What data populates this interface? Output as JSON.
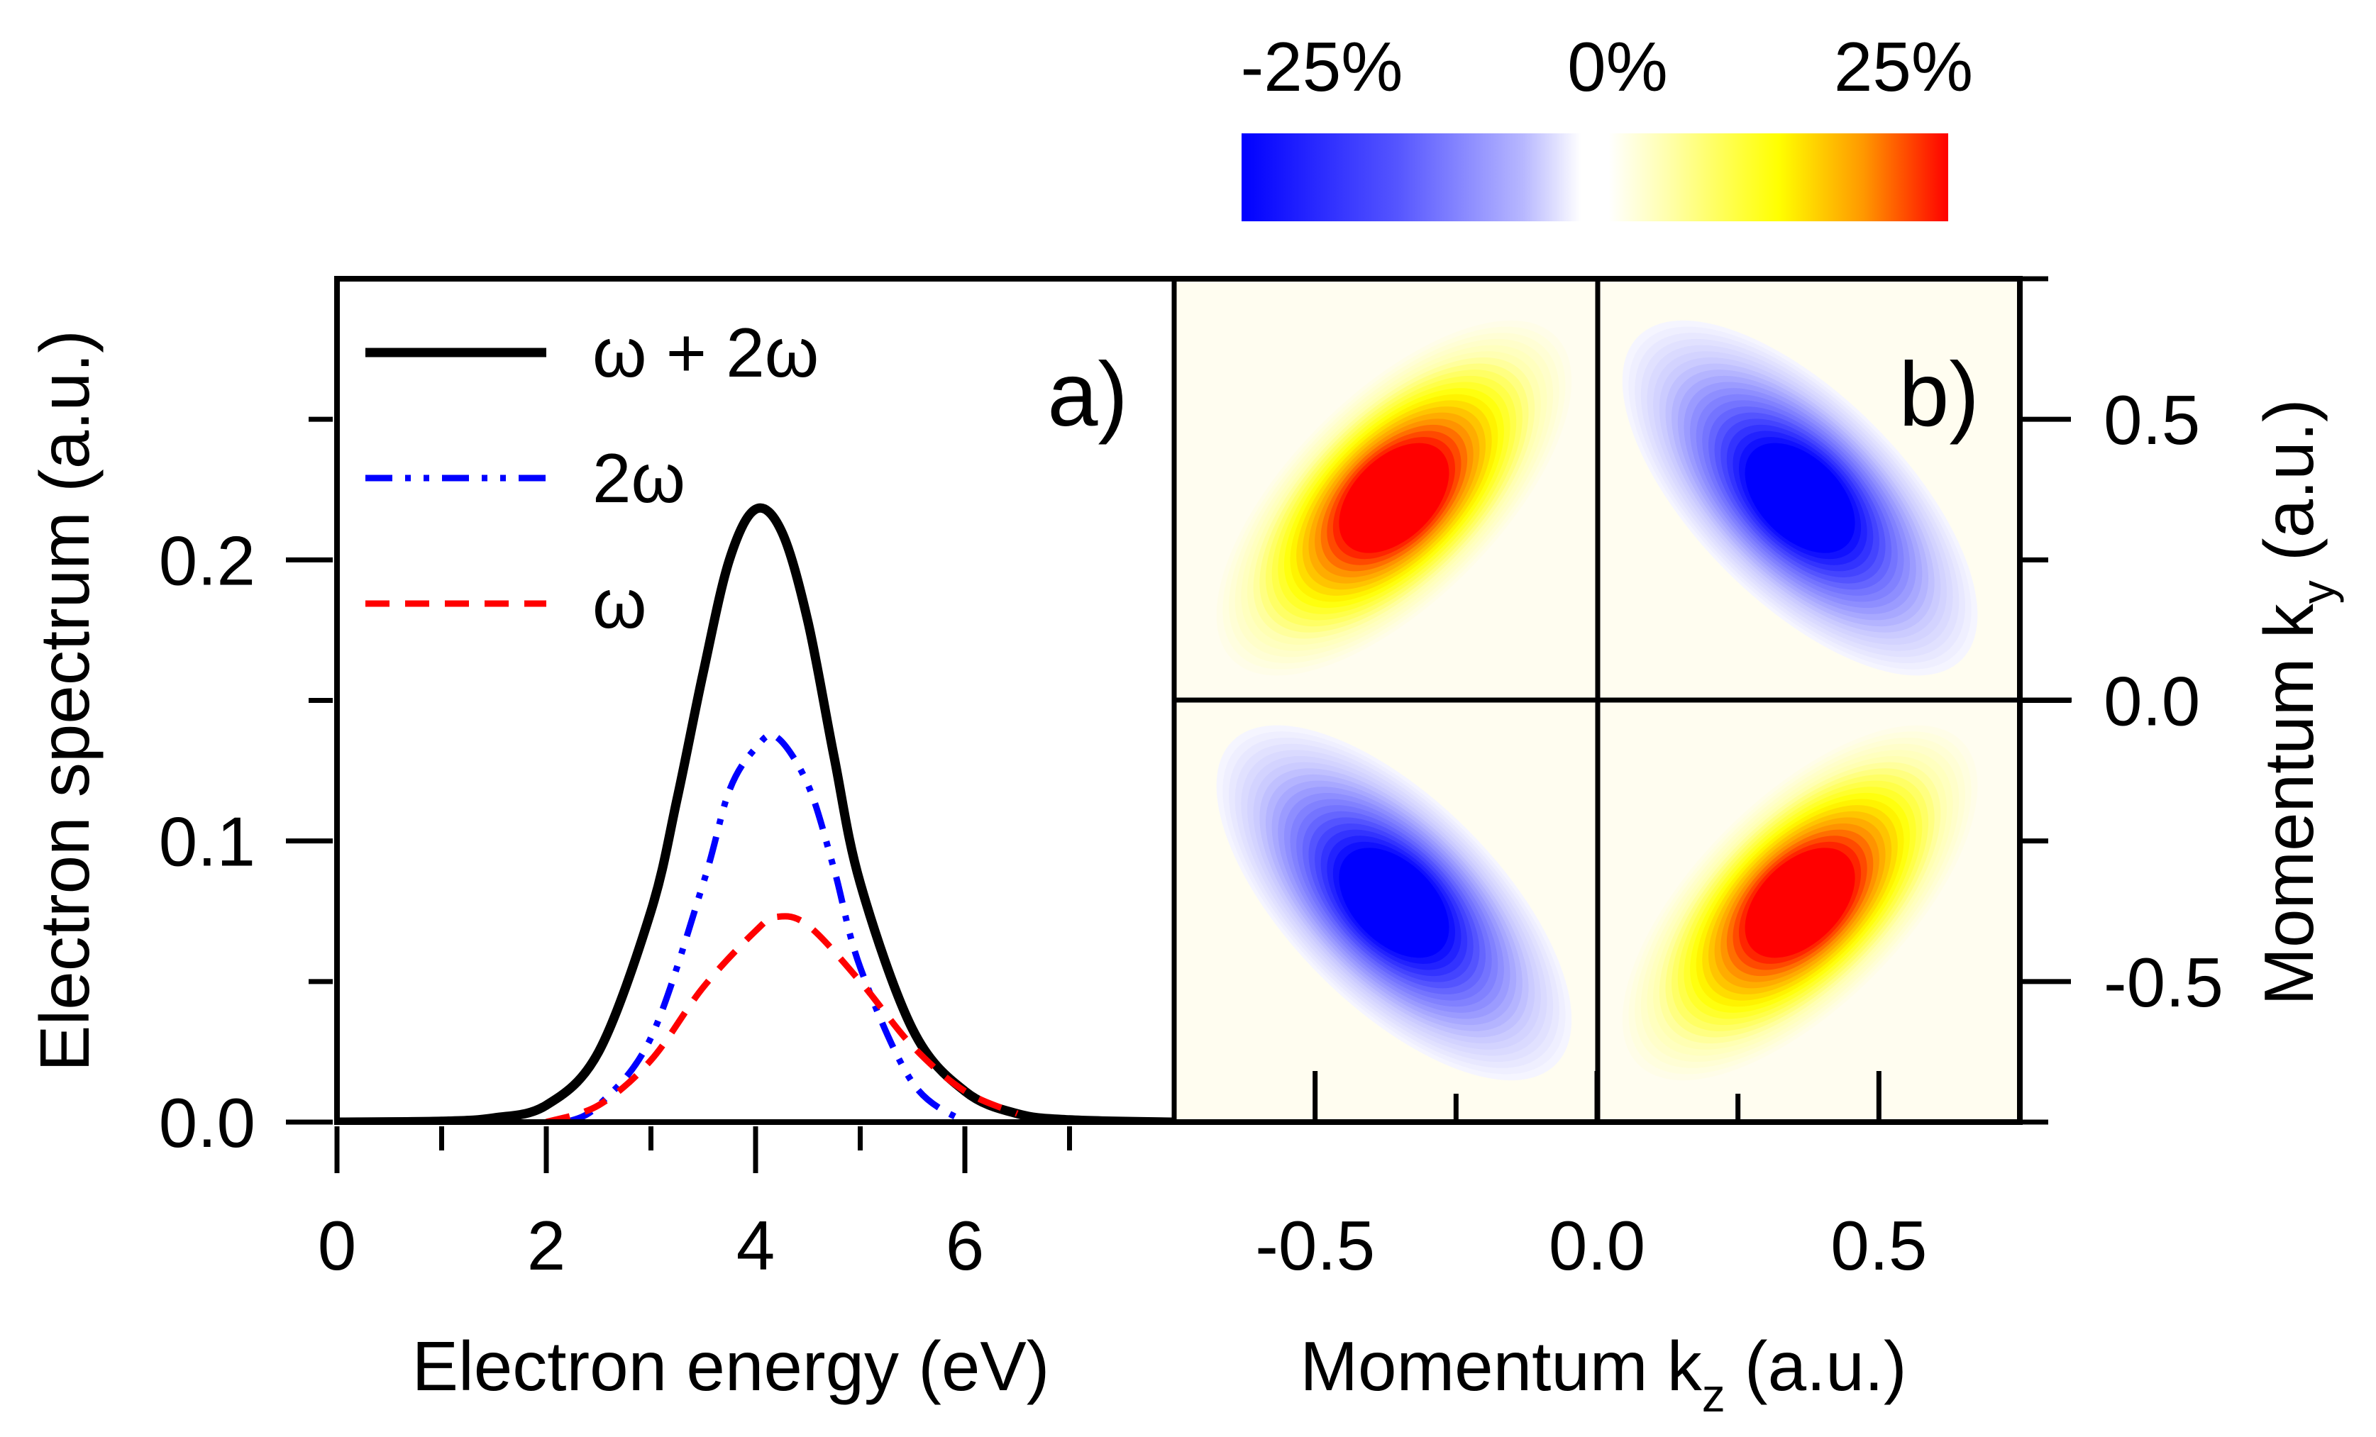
{
  "colorbar": {
    "tick_labels": [
      "-25%",
      "0%",
      "25%"
    ],
    "range": [
      -25,
      25
    ],
    "colors": [
      "#0000ff",
      "#ffffff",
      "#ffff00",
      "#ff0000"
    ]
  },
  "chart_data": [
    {
      "type": "line",
      "panel_label": "a)",
      "xlabel": "Electron energy (eV)",
      "ylabel": "Electron spectrum (a.u.)",
      "xlim": [
        0,
        8
      ],
      "ylim": [
        0,
        0.3
      ],
      "x_ticks": [
        0,
        2,
        4,
        6
      ],
      "x_tick_labels": [
        "0",
        "2",
        "4",
        "6"
      ],
      "y_ticks": [
        0.0,
        0.1,
        0.2
      ],
      "y_tick_labels": [
        "0.0",
        "0.1",
        "0.2"
      ],
      "grid": false,
      "legend_position": "top-left",
      "series": [
        {
          "name": "ω + 2ω",
          "color": "#000000",
          "dash": "solid",
          "x": [
            0,
            1,
            1.5,
            2,
            2.5,
            3,
            3.25,
            3.5,
            3.75,
            4,
            4.25,
            4.5,
            4.75,
            5,
            5.5,
            6,
            6.5,
            7,
            8
          ],
          "y": [
            0,
            0.0003,
            0.0015,
            0.006,
            0.025,
            0.075,
            0.115,
            0.16,
            0.2,
            0.218,
            0.21,
            0.178,
            0.13,
            0.085,
            0.033,
            0.011,
            0.003,
            0.0008,
            0
          ]
        },
        {
          "name": "2ω",
          "color": "#0000ff",
          "dash": "dash-dot-dot",
          "x": [
            2.2,
            2.5,
            3,
            3.5,
            3.75,
            4,
            4.2,
            4.5,
            4.75,
            5,
            5.5,
            6
          ],
          "y": [
            0,
            0.006,
            0.03,
            0.085,
            0.118,
            0.133,
            0.137,
            0.12,
            0.09,
            0.055,
            0.014,
            0
          ]
        },
        {
          "name": "ω",
          "color": "#ff0000",
          "dash": "dash",
          "x": [
            2,
            2.5,
            3,
            3.5,
            4,
            4.2,
            4.5,
            5,
            5.5,
            6,
            6.5
          ],
          "y": [
            0,
            0.006,
            0.022,
            0.048,
            0.068,
            0.073,
            0.07,
            0.05,
            0.027,
            0.011,
            0.003
          ]
        }
      ]
    },
    {
      "type": "heatmap",
      "panel_label": "b)",
      "xlabel": "Momentum k",
      "xlabel_sub": "z",
      "xlabel_suffix": " (a.u.)",
      "ylabel": "Momentum k",
      "ylabel_sub": "y",
      "ylabel_suffix": " (a.u.)",
      "xlim": [
        -0.75,
        0.75
      ],
      "ylim": [
        -0.75,
        0.75
      ],
      "x_ticks": [
        -0.5,
        0.0,
        0.5
      ],
      "x_tick_labels": [
        "-0.5",
        "0.0",
        "0.5"
      ],
      "y_ticks": [
        -0.5,
        0.0,
        0.5
      ],
      "y_tick_labels": [
        "-0.5",
        "0.0",
        "0.5"
      ],
      "y_axis_side": "right",
      "crosshair": [
        0,
        0
      ],
      "value_unit": "%",
      "lobes": [
        {
          "quadrant": "upper-left",
          "center": [
            -0.36,
            0.36
          ],
          "peak": 25,
          "axis_angle_deg": 45
        },
        {
          "quadrant": "upper-right",
          "center": [
            0.36,
            0.36
          ],
          "peak": -25,
          "axis_angle_deg": -45
        },
        {
          "quadrant": "lower-left",
          "center": [
            -0.36,
            -0.36
          ],
          "peak": -25,
          "axis_angle_deg": -45
        },
        {
          "quadrant": "lower-right",
          "center": [
            0.36,
            -0.36
          ],
          "peak": 25,
          "axis_angle_deg": 45
        }
      ]
    }
  ]
}
